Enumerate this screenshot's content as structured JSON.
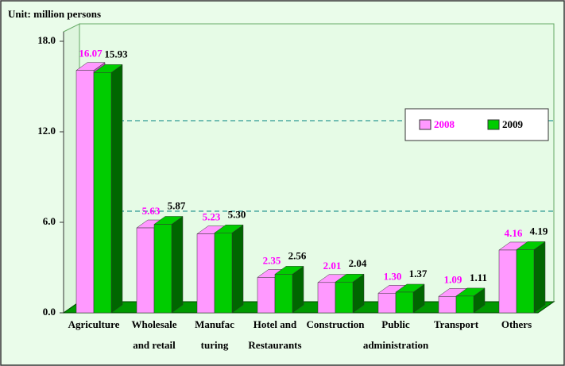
{
  "chart_data": {
    "type": "bar3d",
    "title": "Unit: million persons",
    "categories": [
      "Agriculture",
      "Wholesale\nand retail",
      "Manufac\nturing",
      "Hotel and\nRestaurants",
      "Construction",
      "Public\nadministration",
      "Transport",
      "Others"
    ],
    "series": [
      {
        "name": "2008",
        "color": "#ff99ff",
        "label_color": "#ff00ff",
        "values": [
          16.07,
          5.63,
          5.23,
          2.35,
          2.01,
          1.3,
          1.09,
          4.16
        ],
        "value_labels": [
          "16.07",
          "5.63",
          "5.23",
          "2.35",
          "2.01",
          "1.30",
          "1.09",
          "4.16"
        ]
      },
      {
        "name": "2009",
        "color": "#00cc00",
        "label_color": "#000000",
        "values": [
          15.93,
          5.87,
          5.3,
          2.56,
          2.04,
          1.37,
          1.11,
          4.19
        ],
        "value_labels": [
          "15.93",
          "5.87",
          "5.30",
          "2.56",
          "2.04",
          "1.37",
          "1.11",
          "4.19"
        ]
      }
    ],
    "ylim": [
      0,
      18
    ],
    "yticks": [
      {
        "value": 0,
        "label": "0.0"
      },
      {
        "value": 6,
        "label": "6.0"
      },
      {
        "value": 12,
        "label": "12.0"
      },
      {
        "value": 18,
        "label": "18.0"
      }
    ],
    "grid": true
  }
}
